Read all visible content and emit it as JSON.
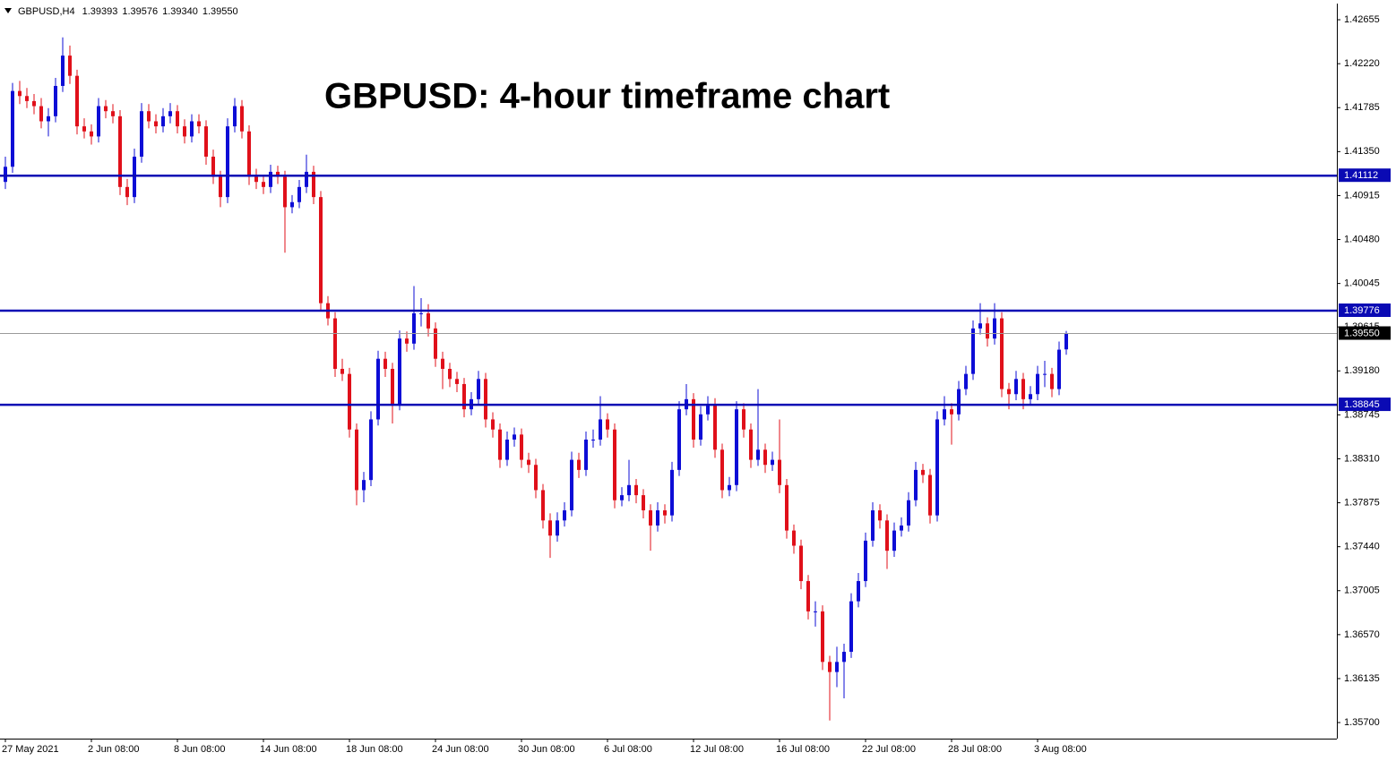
{
  "chart_data": {
    "type": "candlestick",
    "header": {
      "symbol": "GBPUSD,H4",
      "quote": [
        "1.39393",
        "1.39576",
        "1.39340",
        "1.39550"
      ]
    },
    "title": "GBPUSD: 4-hour timeframe chart",
    "up_color": "#0d0dd6",
    "down_color": "#e0101a",
    "ylim": [
      1.35541,
      1.42806
    ],
    "yticks": [
      {
        "value": 1.42655,
        "label": "1.42655"
      },
      {
        "value": 1.4222,
        "label": "1.42220"
      },
      {
        "value": 1.41785,
        "label": "1.41785"
      },
      {
        "value": 1.4135,
        "label": "1.41350"
      },
      {
        "value": 1.40915,
        "label": "1.40915"
      },
      {
        "value": 1.4048,
        "label": "1.40480"
      },
      {
        "value": 1.40045,
        "label": "1.40045"
      },
      {
        "value": 1.39615,
        "label": "1.39615"
      },
      {
        "value": 1.3918,
        "label": "1.39180"
      },
      {
        "value": 1.38745,
        "label": "1.38745"
      },
      {
        "value": 1.3831,
        "label": "1.38310"
      },
      {
        "value": 1.37875,
        "label": "1.37875"
      },
      {
        "value": 1.3744,
        "label": "1.37440"
      },
      {
        "value": 1.37005,
        "label": "1.37005"
      },
      {
        "value": 1.3657,
        "label": "1.36570"
      },
      {
        "value": 1.36135,
        "label": "1.36135"
      },
      {
        "value": 1.357,
        "label": "1.35700"
      }
    ],
    "levels": [
      {
        "value": 1.41112,
        "label": "1.41112",
        "color": "#0a0ab4"
      },
      {
        "value": 1.39776,
        "label": "1.39776",
        "color": "#0a0ab4"
      },
      {
        "value": 1.38845,
        "label": "1.38845",
        "color": "#0a0ab4"
      }
    ],
    "price_line": {
      "value": 1.3955,
      "label": "1.39550",
      "color": "#000000"
    },
    "categories": [
      "27 May 2021",
      null,
      null,
      null,
      null,
      null,
      null,
      null,
      null,
      null,
      null,
      null,
      "2 Jun 08:00",
      null,
      null,
      null,
      null,
      null,
      null,
      null,
      null,
      null,
      null,
      null,
      "8 Jun 08:00",
      null,
      null,
      null,
      null,
      null,
      null,
      null,
      null,
      null,
      null,
      null,
      "14 Jun 08:00",
      null,
      null,
      null,
      null,
      null,
      null,
      null,
      null,
      null,
      null,
      null,
      "18 Jun 08:00",
      null,
      null,
      null,
      null,
      null,
      null,
      null,
      null,
      null,
      null,
      null,
      "24 Jun 08:00",
      null,
      null,
      null,
      null,
      null,
      null,
      null,
      null,
      null,
      null,
      null,
      "30 Jun 08:00",
      null,
      null,
      null,
      null,
      null,
      null,
      null,
      null,
      null,
      null,
      null,
      "6 Jul 08:00",
      null,
      null,
      null,
      null,
      null,
      null,
      null,
      null,
      null,
      null,
      null,
      "12 Jul 08:00",
      null,
      null,
      null,
      null,
      null,
      null,
      null,
      null,
      null,
      null,
      null,
      "16 Jul 08:00",
      null,
      null,
      null,
      null,
      null,
      null,
      null,
      null,
      null,
      null,
      null,
      "22 Jul 08:00",
      null,
      null,
      null,
      null,
      null,
      null,
      null,
      null,
      null,
      null,
      null,
      "28 Jul 08:00",
      null,
      null,
      null,
      null,
      null,
      null,
      null,
      null,
      null,
      null,
      null,
      "3 Aug 08:00",
      null,
      null,
      null,
      null
    ],
    "ohlc": [
      [
        1.4105,
        1.413,
        1.4098,
        1.412
      ],
      [
        1.412,
        1.4203,
        1.4114,
        1.4195
      ],
      [
        1.4195,
        1.4205,
        1.4182,
        1.419
      ],
      [
        1.419,
        1.4198,
        1.4178,
        1.4185
      ],
      [
        1.4185,
        1.4192,
        1.4172,
        1.418
      ],
      [
        1.418,
        1.4188,
        1.4158,
        1.4165
      ],
      [
        1.4165,
        1.4178,
        1.415,
        1.417
      ],
      [
        1.417,
        1.4208,
        1.4164,
        1.42
      ],
      [
        1.42,
        1.4248,
        1.4194,
        1.423
      ],
      [
        1.423,
        1.424,
        1.4202,
        1.421
      ],
      [
        1.421,
        1.4216,
        1.4152,
        1.416
      ],
      [
        1.416,
        1.4168,
        1.4148,
        1.4155
      ],
      [
        1.4155,
        1.4162,
        1.4142,
        1.415
      ],
      [
        1.415,
        1.4188,
        1.4144,
        1.418
      ],
      [
        1.418,
        1.4186,
        1.4168,
        1.4175
      ],
      [
        1.4175,
        1.4182,
        1.4163,
        1.417
      ],
      [
        1.417,
        1.4176,
        1.4092,
        1.41
      ],
      [
        1.41,
        1.4108,
        1.4082,
        1.409
      ],
      [
        1.409,
        1.4138,
        1.4084,
        1.413
      ],
      [
        1.413,
        1.4183,
        1.4124,
        1.4175
      ],
      [
        1.4175,
        1.4182,
        1.4158,
        1.4165
      ],
      [
        1.4165,
        1.4172,
        1.4153,
        1.416
      ],
      [
        1.416,
        1.4178,
        1.4154,
        1.417
      ],
      [
        1.417,
        1.4183,
        1.4163,
        1.4175
      ],
      [
        1.4175,
        1.4181,
        1.4153,
        1.416
      ],
      [
        1.416,
        1.4167,
        1.4143,
        1.415
      ],
      [
        1.415,
        1.4172,
        1.4144,
        1.4165
      ],
      [
        1.4165,
        1.4172,
        1.4153,
        1.416
      ],
      [
        1.416,
        1.4166,
        1.4122,
        1.413
      ],
      [
        1.413,
        1.4137,
        1.4103,
        1.411
      ],
      [
        1.411,
        1.4116,
        1.408,
        1.409
      ],
      [
        1.409,
        1.4168,
        1.4084,
        1.416
      ],
      [
        1.416,
        1.4188,
        1.4154,
        1.418
      ],
      [
        1.418,
        1.4186,
        1.4148,
        1.4155
      ],
      [
        1.4155,
        1.4161,
        1.4102,
        1.411
      ],
      [
        1.411,
        1.4118,
        1.4098,
        1.4105
      ],
      [
        1.4105,
        1.4112,
        1.4093,
        1.41
      ],
      [
        1.41,
        1.4122,
        1.4094,
        1.4115
      ],
      [
        1.4115,
        1.4121,
        1.4103,
        1.411
      ],
      [
        1.411,
        1.4116,
        1.4035,
        1.408
      ],
      [
        1.408,
        1.4092,
        1.4074,
        1.4085
      ],
      [
        1.4085,
        1.4107,
        1.4079,
        1.41
      ],
      [
        1.41,
        1.4132,
        1.4094,
        1.4115
      ],
      [
        1.4115,
        1.4121,
        1.4083,
        1.409
      ],
      [
        1.409,
        1.4096,
        1.3978,
        1.3985
      ],
      [
        1.3985,
        1.3992,
        1.3963,
        1.397
      ],
      [
        1.397,
        1.3976,
        1.3912,
        1.392
      ],
      [
        1.392,
        1.393,
        1.3908,
        1.3915
      ],
      [
        1.3915,
        1.3921,
        1.3852,
        1.386
      ],
      [
        1.386,
        1.3866,
        1.3785,
        1.38
      ],
      [
        1.38,
        1.3818,
        1.3788,
        1.381
      ],
      [
        1.381,
        1.3878,
        1.3804,
        1.387
      ],
      [
        1.387,
        1.3938,
        1.3864,
        1.393
      ],
      [
        1.393,
        1.3937,
        1.3912,
        1.392
      ],
      [
        1.392,
        1.3926,
        1.3866,
        1.3885
      ],
      [
        1.3885,
        1.3958,
        1.3879,
        1.395
      ],
      [
        1.395,
        1.3957,
        1.3937,
        1.3945
      ],
      [
        1.3945,
        1.4002,
        1.3939,
        1.3975
      ],
      [
        1.3975,
        1.399,
        1.3962,
        1.3975
      ],
      [
        1.3975,
        1.3984,
        1.3952,
        1.396
      ],
      [
        1.396,
        1.3966,
        1.3922,
        1.393
      ],
      [
        1.393,
        1.3937,
        1.39,
        1.392
      ],
      [
        1.392,
        1.3926,
        1.3902,
        1.391
      ],
      [
        1.391,
        1.3917,
        1.3897,
        1.3905
      ],
      [
        1.3905,
        1.3911,
        1.3872,
        1.388
      ],
      [
        1.388,
        1.3897,
        1.3874,
        1.389
      ],
      [
        1.389,
        1.3918,
        1.3884,
        1.391
      ],
      [
        1.391,
        1.3916,
        1.3862,
        1.387
      ],
      [
        1.387,
        1.3877,
        1.3852,
        1.386
      ],
      [
        1.386,
        1.3866,
        1.3822,
        1.383
      ],
      [
        1.383,
        1.3858,
        1.3824,
        1.385
      ],
      [
        1.385,
        1.3862,
        1.3843,
        1.3855
      ],
      [
        1.3855,
        1.3861,
        1.3822,
        1.383
      ],
      [
        1.383,
        1.3837,
        1.3817,
        1.3825
      ],
      [
        1.3825,
        1.3831,
        1.3792,
        1.38
      ],
      [
        1.38,
        1.3806,
        1.3762,
        1.377
      ],
      [
        1.377,
        1.3777,
        1.3733,
        1.3755
      ],
      [
        1.3755,
        1.3778,
        1.3749,
        1.377
      ],
      [
        1.377,
        1.3788,
        1.3764,
        1.378
      ],
      [
        1.378,
        1.3838,
        1.3774,
        1.383
      ],
      [
        1.383,
        1.3837,
        1.3812,
        1.382
      ],
      [
        1.382,
        1.3858,
        1.3814,
        1.385
      ],
      [
        1.385,
        1.386,
        1.3842,
        1.385
      ],
      [
        1.385,
        1.3893,
        1.3844,
        1.387
      ],
      [
        1.387,
        1.3876,
        1.3852,
        1.386
      ],
      [
        1.386,
        1.3866,
        1.3782,
        1.379
      ],
      [
        1.379,
        1.3803,
        1.3784,
        1.3795
      ],
      [
        1.3795,
        1.383,
        1.3789,
        1.3805
      ],
      [
        1.3805,
        1.3811,
        1.3787,
        1.3795
      ],
      [
        1.3795,
        1.3801,
        1.3772,
        1.378
      ],
      [
        1.378,
        1.3786,
        1.374,
        1.3765
      ],
      [
        1.3765,
        1.3788,
        1.3759,
        1.378
      ],
      [
        1.378,
        1.3786,
        1.3767,
        1.3775
      ],
      [
        1.3775,
        1.3828,
        1.3769,
        1.382
      ],
      [
        1.382,
        1.3888,
        1.3814,
        1.388
      ],
      [
        1.388,
        1.3905,
        1.3874,
        1.389
      ],
      [
        1.389,
        1.3896,
        1.3842,
        1.385
      ],
      [
        1.385,
        1.3883,
        1.3844,
        1.3875
      ],
      [
        1.3875,
        1.3893,
        1.3869,
        1.3885
      ],
      [
        1.3885,
        1.3891,
        1.3832,
        1.384
      ],
      [
        1.384,
        1.3846,
        1.3792,
        1.38
      ],
      [
        1.38,
        1.3813,
        1.3794,
        1.3805
      ],
      [
        1.3805,
        1.3888,
        1.3799,
        1.388
      ],
      [
        1.388,
        1.3886,
        1.3852,
        1.386
      ],
      [
        1.386,
        1.3866,
        1.3822,
        1.383
      ],
      [
        1.383,
        1.39,
        1.3824,
        1.384
      ],
      [
        1.384,
        1.3846,
        1.3817,
        1.3825
      ],
      [
        1.3825,
        1.3838,
        1.3819,
        1.383
      ],
      [
        1.383,
        1.387,
        1.3797,
        1.3805
      ],
      [
        1.3805,
        1.3811,
        1.3752,
        1.376
      ],
      [
        1.376,
        1.3766,
        1.3737,
        1.3745
      ],
      [
        1.3745,
        1.3751,
        1.3702,
        1.371
      ],
      [
        1.371,
        1.3716,
        1.3672,
        1.368
      ],
      [
        1.368,
        1.369,
        1.3665,
        1.368
      ],
      [
        1.368,
        1.3686,
        1.3622,
        1.363
      ],
      [
        1.363,
        1.3636,
        1.3572,
        1.362
      ],
      [
        1.362,
        1.3645,
        1.3605,
        1.363
      ],
      [
        1.363,
        1.3648,
        1.3594,
        1.364
      ],
      [
        1.364,
        1.3698,
        1.3634,
        1.369
      ],
      [
        1.369,
        1.3718,
        1.3684,
        1.371
      ],
      [
        1.371,
        1.3758,
        1.3704,
        1.375
      ],
      [
        1.375,
        1.3788,
        1.3744,
        1.378
      ],
      [
        1.378,
        1.3786,
        1.3762,
        1.377
      ],
      [
        1.377,
        1.3776,
        1.3722,
        1.374
      ],
      [
        1.374,
        1.3768,
        1.3734,
        1.376
      ],
      [
        1.376,
        1.3773,
        1.3754,
        1.3765
      ],
      [
        1.3765,
        1.3798,
        1.3759,
        1.379
      ],
      [
        1.379,
        1.3828,
        1.3784,
        1.382
      ],
      [
        1.382,
        1.3826,
        1.3807,
        1.3815
      ],
      [
        1.3815,
        1.3821,
        1.3767,
        1.3775
      ],
      [
        1.3775,
        1.3878,
        1.3769,
        1.387
      ],
      [
        1.387,
        1.3893,
        1.3864,
        1.388
      ],
      [
        1.388,
        1.3886,
        1.3845,
        1.3875
      ],
      [
        1.3875,
        1.3908,
        1.3869,
        1.39
      ],
      [
        1.39,
        1.3923,
        1.3894,
        1.3915
      ],
      [
        1.3915,
        1.3968,
        1.3909,
        1.396
      ],
      [
        1.396,
        1.3985,
        1.3954,
        1.3965
      ],
      [
        1.3965,
        1.3971,
        1.3942,
        1.395
      ],
      [
        1.395,
        1.3985,
        1.3944,
        1.397
      ],
      [
        1.397,
        1.3976,
        1.3892,
        1.39
      ],
      [
        1.39,
        1.3906,
        1.388,
        1.3895
      ],
      [
        1.3895,
        1.3918,
        1.3889,
        1.391
      ],
      [
        1.391,
        1.3916,
        1.388,
        1.389
      ],
      [
        1.389,
        1.3903,
        1.3884,
        1.3895
      ],
      [
        1.3895,
        1.3923,
        1.3889,
        1.3915
      ],
      [
        1.3915,
        1.3928,
        1.3902,
        1.3915
      ],
      [
        1.3915,
        1.3921,
        1.3892,
        1.39
      ],
      [
        1.39,
        1.3947,
        1.3894,
        1.3939
      ],
      [
        1.39393,
        1.39576,
        1.3934,
        1.3955
      ]
    ]
  }
}
